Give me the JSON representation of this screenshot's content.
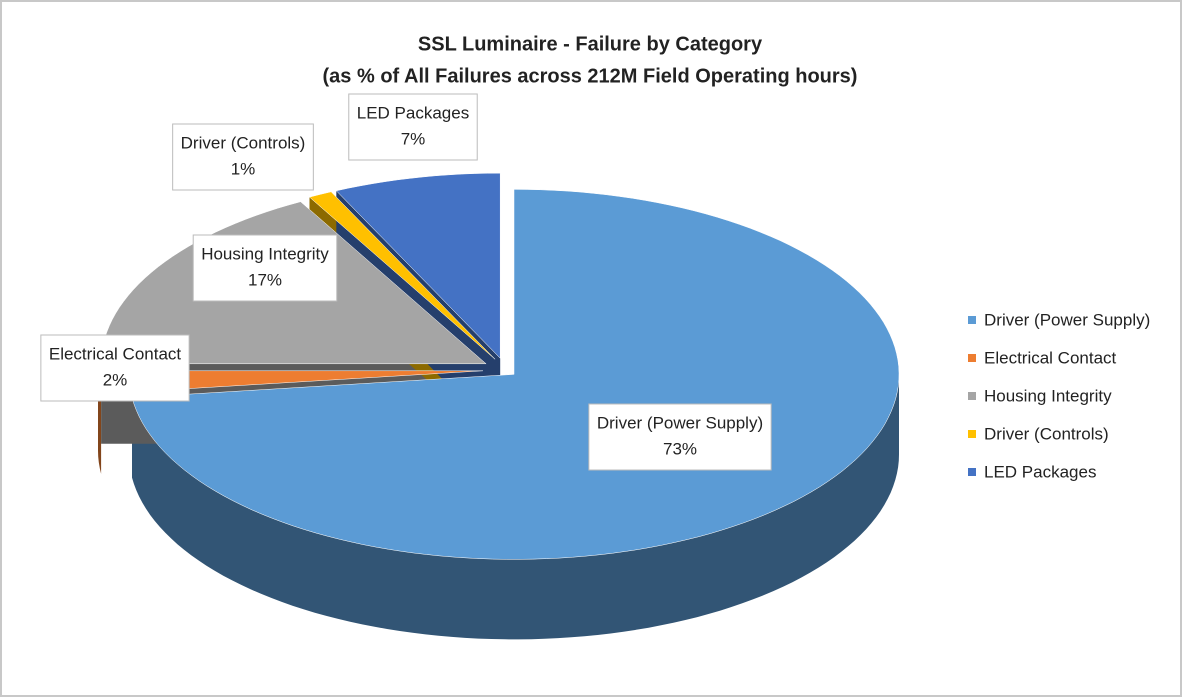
{
  "chart_data": {
    "type": "pie",
    "title": "SSL Luminaire - Failure by Category",
    "subtitle": "(as % of All Failures across 212M Field Operating hours)",
    "categories": [
      "Driver (Power Supply)",
      "Electrical Contact",
      "Housing Integrity",
      "Driver (Controls)",
      "LED Packages"
    ],
    "values": [
      73,
      2,
      17,
      1,
      7
    ],
    "value_labels": [
      "73%",
      "2%",
      "17%",
      "1%",
      "7%"
    ],
    "colors": [
      "#5b9bd5",
      "#ed7d31",
      "#a5a5a5",
      "#ffc000",
      "#4472c4"
    ],
    "legend": "right"
  }
}
